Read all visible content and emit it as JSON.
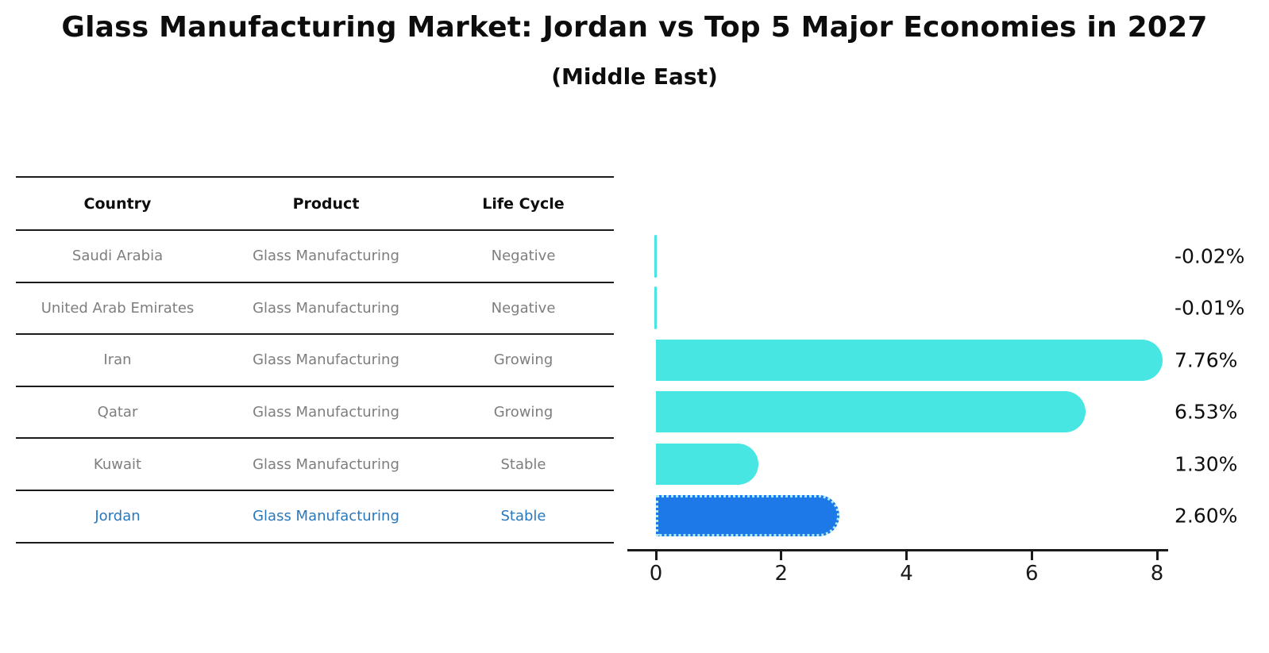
{
  "title": "Glass Manufacturing Market: Jordan vs Top 5 Major Economies in 2027",
  "subtitle": "(Middle East)",
  "table": {
    "columns": [
      "Country",
      "Product",
      "Life Cycle"
    ],
    "rows": [
      {
        "country": "Saudi Arabia",
        "product": "Glass Manufacturing",
        "life_cycle": "Negative"
      },
      {
        "country": "United Arab Emirates",
        "product": "Glass Manufacturing",
        "life_cycle": "Negative"
      },
      {
        "country": "Iran",
        "product": "Glass Manufacturing",
        "life_cycle": "Growing"
      },
      {
        "country": "Qatar",
        "product": "Glass Manufacturing",
        "life_cycle": "Growing"
      },
      {
        "country": "Kuwait",
        "product": "Glass Manufacturing",
        "life_cycle": "Stable"
      },
      {
        "country": "Jordan",
        "product": "Glass Manufacturing",
        "life_cycle": "Stable"
      }
    ],
    "highlighted_row": "Jordan"
  },
  "chart_data": {
    "type": "bar",
    "orientation": "horizontal",
    "categories": [
      "Saudi Arabia",
      "United Arab Emirates",
      "Iran",
      "Qatar",
      "Kuwait",
      "Jordan"
    ],
    "values": [
      -0.02,
      -0.01,
      7.76,
      6.53,
      1.3,
      2.6
    ],
    "labels": [
      "-0.02%",
      "-0.01%",
      "7.76%",
      "6.53%",
      "1.30%",
      "2.60%"
    ],
    "xticks": [
      0,
      2,
      4,
      6,
      8
    ],
    "xlim": [
      0,
      8
    ],
    "grid": false,
    "legend": "none",
    "highlight_index": 5
  },
  "colors": {
    "bar_cyan": "#47e6e2",
    "bar_blue": "#1e79e8",
    "bar_edge_light": "#aeeaf0",
    "accent_text_blue": "#2878be",
    "table_text_gray": "#7e7e7e",
    "axis_black": "#1a1a1a"
  }
}
